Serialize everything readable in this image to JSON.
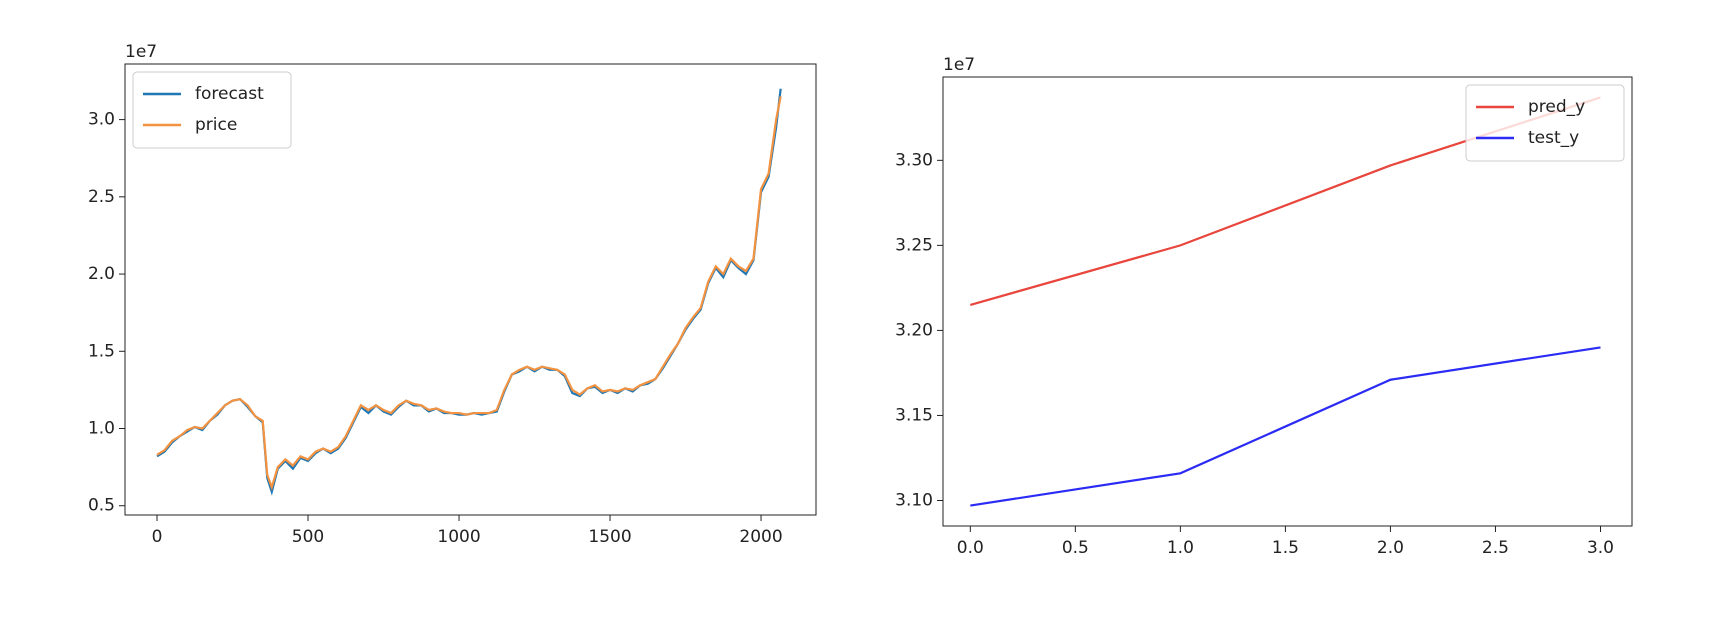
{
  "chart_data": [
    {
      "type": "line",
      "offset_label": "1e7",
      "legend": "upper left",
      "grid": false,
      "xlim": [
        -106,
        2182
      ],
      "xticks": [
        0,
        500,
        1000,
        1500,
        2000
      ],
      "ylim": [
        0.44,
        3.36
      ],
      "yticks": [
        0.5,
        {
          "value": 1,
          "label": "1.0"
        },
        1.5,
        {
          "value": 2,
          "label": "2.0"
        },
        2.5,
        {
          "value": 3,
          "label": "3.0"
        }
      ],
      "x": [
        0,
        25,
        50,
        75,
        100,
        125,
        150,
        175,
        200,
        225,
        250,
        275,
        300,
        325,
        350,
        365,
        380,
        400,
        425,
        450,
        475,
        500,
        525,
        550,
        575,
        600,
        625,
        650,
        675,
        700,
        725,
        750,
        775,
        800,
        825,
        850,
        875,
        900,
        925,
        950,
        975,
        1000,
        1025,
        1050,
        1075,
        1100,
        1125,
        1150,
        1175,
        1200,
        1225,
        1250,
        1275,
        1300,
        1325,
        1350,
        1375,
        1400,
        1425,
        1450,
        1475,
        1500,
        1525,
        1550,
        1575,
        1600,
        1625,
        1650,
        1675,
        1700,
        1725,
        1750,
        1775,
        1800,
        1825,
        1850,
        1875,
        1900,
        1925,
        1950,
        1975,
        2000,
        2025,
        2050,
        2065
      ],
      "series": [
        {
          "name": "forecast",
          "color": "#1f77b4",
          "values": [
            0.82,
            0.85,
            0.91,
            0.95,
            0.98,
            1.01,
            0.99,
            1.05,
            1.09,
            1.15,
            1.18,
            1.19,
            1.14,
            1.08,
            1.04,
            0.68,
            0.59,
            0.74,
            0.79,
            0.74,
            0.81,
            0.79,
            0.84,
            0.87,
            0.84,
            0.87,
            0.94,
            1.04,
            1.14,
            1.1,
            1.15,
            1.11,
            1.09,
            1.14,
            1.18,
            1.15,
            1.15,
            1.11,
            1.13,
            1.1,
            1.1,
            1.09,
            1.09,
            1.1,
            1.09,
            1.1,
            1.11,
            1.24,
            1.35,
            1.37,
            1.4,
            1.37,
            1.4,
            1.38,
            1.38,
            1.34,
            1.23,
            1.21,
            1.26,
            1.27,
            1.23,
            1.25,
            1.23,
            1.26,
            1.24,
            1.28,
            1.29,
            1.32,
            1.39,
            1.47,
            1.55,
            1.64,
            1.71,
            1.77,
            1.94,
            2.04,
            1.98,
            2.09,
            2.04,
            2.0,
            2.09,
            2.53,
            2.63,
            2.95,
            3.2
          ]
        },
        {
          "name": "price",
          "color": "#f39240",
          "values": [
            0.83,
            0.86,
            0.92,
            0.95,
            0.99,
            1.01,
            1.0,
            1.05,
            1.1,
            1.15,
            1.18,
            1.19,
            1.15,
            1.08,
            1.05,
            0.7,
            0.62,
            0.75,
            0.8,
            0.76,
            0.82,
            0.8,
            0.85,
            0.87,
            0.85,
            0.88,
            0.95,
            1.05,
            1.15,
            1.12,
            1.15,
            1.12,
            1.1,
            1.15,
            1.18,
            1.16,
            1.15,
            1.12,
            1.13,
            1.11,
            1.1,
            1.1,
            1.09,
            1.1,
            1.1,
            1.1,
            1.12,
            1.25,
            1.35,
            1.38,
            1.4,
            1.38,
            1.4,
            1.39,
            1.38,
            1.35,
            1.25,
            1.22,
            1.26,
            1.28,
            1.24,
            1.25,
            1.24,
            1.26,
            1.25,
            1.28,
            1.3,
            1.32,
            1.4,
            1.48,
            1.55,
            1.65,
            1.72,
            1.78,
            1.95,
            2.05,
            2.0,
            2.1,
            2.05,
            2.02,
            2.1,
            2.55,
            2.65,
            3.0,
            3.15
          ]
        }
      ]
    },
    {
      "type": "line",
      "offset_label": "1e7",
      "legend": "upper right",
      "grid": false,
      "xlim": [
        -0.13,
        3.15
      ],
      "xticks": [
        {
          "value": 0,
          "label": "0.0"
        },
        0.5,
        {
          "value": 1,
          "label": "1.0"
        },
        1.5,
        {
          "value": 2,
          "label": "2.0"
        },
        2.5,
        {
          "value": 3,
          "label": "3.0"
        }
      ],
      "ylim": [
        3.085,
        3.349
      ],
      "yticks": [
        {
          "value": 3.1,
          "label": "3.10"
        },
        3.15,
        {
          "value": 3.2,
          "label": "3.20"
        },
        3.25,
        {
          "value": 3.3,
          "label": "3.30"
        }
      ],
      "x": [
        0,
        1,
        2,
        3
      ],
      "series": [
        {
          "name": "pred_y",
          "color": "#e8453c",
          "values": [
            3.215,
            3.25,
            3.297,
            3.337
          ]
        },
        {
          "name": "test_y",
          "color": "#2b2bf5",
          "values": [
            3.097,
            3.116,
            3.171,
            3.19
          ]
        }
      ]
    }
  ]
}
